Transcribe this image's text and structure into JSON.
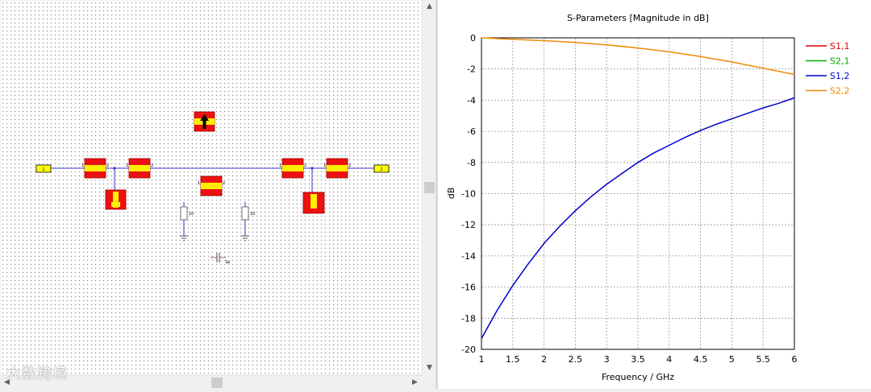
{
  "schematic": {
    "ports": [
      {
        "label": "1"
      },
      {
        "label": "2"
      }
    ],
    "pin_labels": {
      "one": "1",
      "two": "2"
    },
    "resistor_value": "10",
    "capacitor_value": "1p"
  },
  "watermark": "大数跨境",
  "chart_data": {
    "type": "line",
    "title": "S-Parameters [Magnitude in dB]",
    "xlabel": "Frequency / GHz",
    "ylabel": "dB",
    "xlim": [
      1,
      6
    ],
    "ylim": [
      -20,
      0
    ],
    "xticks": [
      "1",
      "1.5",
      "2",
      "2.5",
      "3",
      "3.5",
      "4",
      "4.5",
      "5",
      "5.5",
      "6"
    ],
    "yticks": [
      "0",
      "-2",
      "-4",
      "-6",
      "-8",
      "-10",
      "-12",
      "-14",
      "-16",
      "-18",
      "-20"
    ],
    "grid": true,
    "legend_position": "right",
    "series": [
      {
        "name": "S1,1",
        "color": "#dd0000",
        "x": [],
        "y": []
      },
      {
        "name": "S2,1",
        "color": "#00aa00",
        "x": [],
        "y": []
      },
      {
        "name": "S1,2",
        "color": "#0000cc",
        "x": [
          1,
          1.25,
          1.5,
          1.75,
          2,
          2.25,
          2.5,
          2.75,
          3,
          3.25,
          3.5,
          3.75,
          4,
          4.25,
          4.5,
          4.75,
          5,
          5.25,
          5.5,
          5.75,
          6
        ],
        "y": [
          -19.3,
          -17.5,
          -15.9,
          -14.5,
          -13.2,
          -12.1,
          -11.1,
          -10.2,
          -9.4,
          -8.7,
          -8.0,
          -7.4,
          -6.9,
          -6.4,
          -5.95,
          -5.55,
          -5.2,
          -4.85,
          -4.5,
          -4.2,
          -3.85
        ]
      },
      {
        "name": "S2,2",
        "color": "#ee8800",
        "x": [
          1,
          1.5,
          2,
          2.5,
          3,
          3.5,
          4,
          4.5,
          5,
          5.5,
          6
        ],
        "y": [
          0,
          -0.1,
          -0.18,
          -0.3,
          -0.45,
          -0.65,
          -0.9,
          -1.2,
          -1.55,
          -1.95,
          -2.35
        ]
      }
    ]
  }
}
